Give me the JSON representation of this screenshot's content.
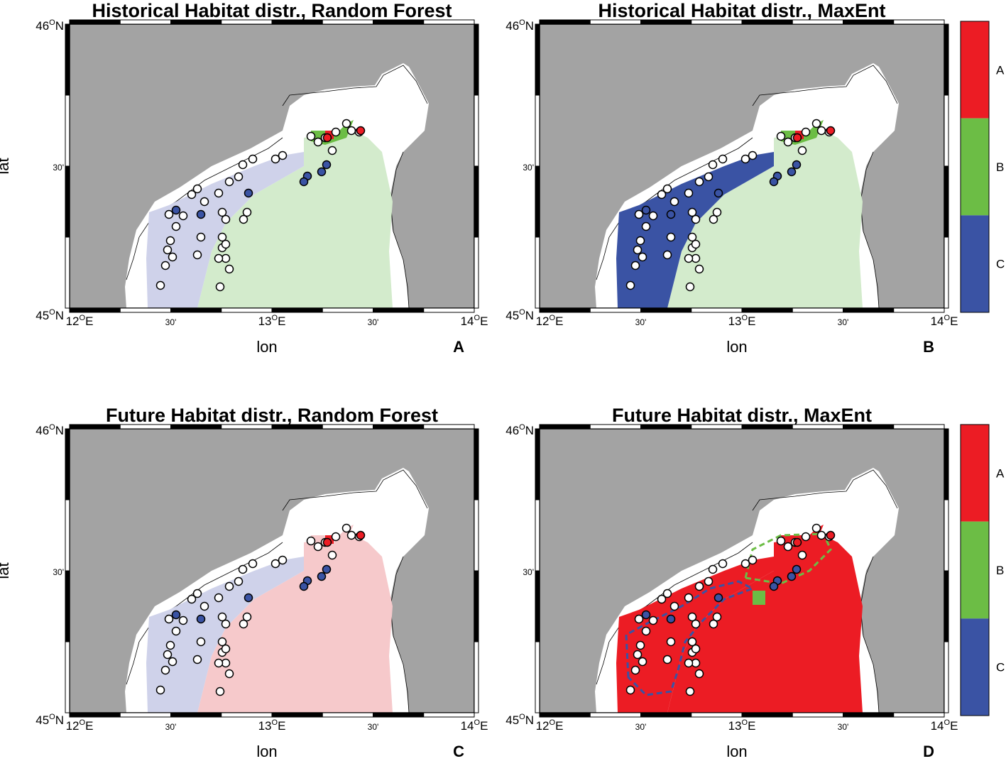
{
  "figure": {
    "ylabel": "lat",
    "xlabel": "lon",
    "lat_ticks": {
      "top": "46",
      "top_unit": "O",
      "top_hem": "N",
      "mid": "30'",
      "bottom": "45",
      "bottom_unit": "O",
      "bottom_hem": "N"
    },
    "lon_ticks": [
      {
        "deg": "12",
        "hem": "E",
        "text": ""
      },
      {
        "deg": "",
        "hem": "",
        "text": "30'"
      },
      {
        "deg": "13",
        "hem": "E",
        "text": ""
      },
      {
        "deg": "",
        "hem": "",
        "text": "30'"
      },
      {
        "deg": "14",
        "hem": "E",
        "text": ""
      }
    ],
    "degree_symbol": "O",
    "colorbar_labels": [
      "A",
      "B",
      "C"
    ],
    "colors": {
      "land": "#a3a3a3",
      "sea_white": "#ffffff",
      "A": "#ec1c24",
      "B": "#6cbd45",
      "C": "#3a53a4",
      "A_light": "#f6c9cb",
      "B_light": "#d3ebcc",
      "C_light": "#cfd2ea",
      "frame": "#000000"
    },
    "panels": [
      {
        "id": "A",
        "title": "Historical Habitat distr., Random Forest",
        "letter": "A",
        "scenario": "historical",
        "model": "random-forest"
      },
      {
        "id": "B",
        "title": "Historical Habitat distr., MaxEnt",
        "letter": "B",
        "scenario": "historical",
        "model": "maxent"
      },
      {
        "id": "C",
        "title": "Future Habitat distr., Random Forest",
        "letter": "C",
        "scenario": "future",
        "model": "random-forest"
      },
      {
        "id": "D",
        "title": "Future Habitat distr., MaxEnt",
        "letter": "D",
        "scenario": "future",
        "model": "maxent"
      }
    ]
  }
}
